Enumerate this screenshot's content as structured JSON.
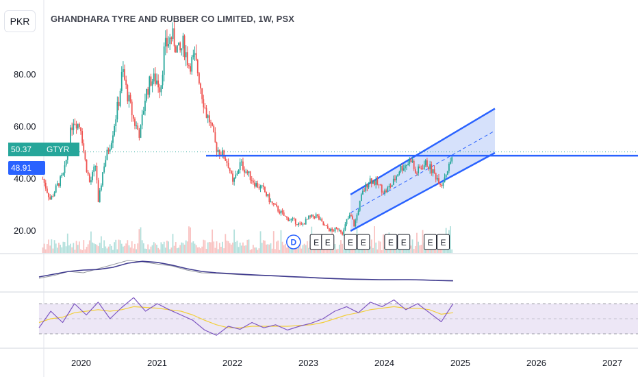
{
  "header": {
    "currency": "PKR",
    "title": "GHANDHARA TYRE AND RUBBER CO LIMITED, 1W, PSX"
  },
  "price_tags": {
    "last_price": "50.37",
    "symbol": "GTYR",
    "level_price": "48.91"
  },
  "colors": {
    "up": "#26a69a",
    "down": "#ef5350",
    "trendline": "#2962ff",
    "channel_fill": "#bbcdf8",
    "ma_fast": "#9598a1",
    "ma_slow": "#3f3a8f",
    "rsi": "#7e57c2",
    "rsi_ma": "#f2cf3b",
    "rsi_band": "#ede7f6"
  },
  "chart_data": {
    "type": "line",
    "title": "GHANDHARA TYRE AND RUBBER CO LIMITED, 1W, PSX",
    "ylabel": "PKR",
    "y_ticks": [
      "20.00",
      "40.00",
      "60.00",
      "80.00"
    ],
    "x_ticks": [
      "2020",
      "2021",
      "2022",
      "2023",
      "2024",
      "2025",
      "2026",
      "2027"
    ],
    "ylim": [
      8,
      102
    ],
    "xlim": [
      2019.45,
      2027.35
    ],
    "price_series": {
      "name": "GTYR",
      "x": [
        2019.5,
        2019.6,
        2019.7,
        2019.78,
        2019.85,
        2019.9,
        2020.0,
        2020.05,
        2020.12,
        2020.2,
        2020.23,
        2020.3,
        2020.4,
        2020.5,
        2020.55,
        2020.6,
        2020.7,
        2020.78,
        2020.85,
        2020.92,
        2021.0,
        2021.05,
        2021.1,
        2021.2,
        2021.3,
        2021.35,
        2021.42,
        2021.5,
        2021.55,
        2021.6,
        2021.65,
        2021.7,
        2021.78,
        2021.85,
        2021.9,
        2021.95,
        2022.0,
        2022.1,
        2022.2,
        2022.3,
        2022.4,
        2022.5,
        2022.6,
        2022.7,
        2022.8,
        2022.9,
        2023.0,
        2023.1,
        2023.2,
        2023.3,
        2023.4,
        2023.45,
        2023.5,
        2023.55,
        2023.6,
        2023.7,
        2023.8,
        2023.9,
        2024.0,
        2024.1,
        2024.2,
        2024.3,
        2024.35,
        2024.4,
        2024.5,
        2024.55,
        2024.6,
        2024.7,
        2024.75,
        2024.8,
        2024.85,
        2024.9
      ],
      "values": [
        40,
        32,
        38,
        42,
        55,
        63,
        60,
        48,
        38,
        46,
        30,
        45,
        55,
        70,
        82,
        74,
        62,
        57,
        72,
        78,
        78,
        75,
        90,
        95,
        88,
        92,
        84,
        86,
        80,
        72,
        65,
        62,
        52,
        50,
        48,
        45,
        38,
        46,
        42,
        38,
        36,
        31,
        28,
        25,
        24,
        22,
        25,
        26,
        22,
        20,
        21,
        19,
        24,
        26,
        22,
        34,
        40,
        38,
        35,
        38,
        44,
        46,
        48,
        42,
        45,
        46,
        44,
        40,
        38,
        42,
        45,
        50.37
      ]
    },
    "horizontal_level": 48.91,
    "channel": {
      "lower": [
        [
          2023.55,
          20
        ],
        [
          2025.45,
          50
        ]
      ],
      "upper": [
        [
          2023.55,
          34
        ],
        [
          2025.45,
          67
        ]
      ],
      "mid": [
        [
          2023.55,
          27
        ],
        [
          2025.45,
          58.5
        ]
      ]
    },
    "events": [
      {
        "x": 2022.8,
        "label": "D"
      },
      {
        "x": 2023.1,
        "label": "E"
      },
      {
        "x": 2023.25,
        "label": "E"
      },
      {
        "x": 2023.55,
        "label": "E"
      },
      {
        "x": 2023.72,
        "label": "E"
      },
      {
        "x": 2024.08,
        "label": "E"
      },
      {
        "x": 2024.25,
        "label": "E"
      },
      {
        "x": 2024.6,
        "label": "E"
      },
      {
        "x": 2024.77,
        "label": "E"
      }
    ],
    "ma_series": [
      {
        "values": [
          0.3,
          0.4,
          0.55,
          0.5,
          0.65,
          0.8,
          0.95,
          0.9,
          0.82,
          0.75,
          0.6,
          0.5,
          0.48,
          0.45,
          0.42,
          0.4,
          0.38,
          0.35,
          0.33,
          0.3,
          0.28,
          0.26,
          0.25,
          0.24,
          0.24,
          0.25,
          0.24,
          0.22,
          0.2
        ]
      },
      {
        "values": [
          0.35,
          0.45,
          0.55,
          0.6,
          0.62,
          0.7,
          0.85,
          0.92,
          0.88,
          0.78,
          0.65,
          0.55,
          0.5,
          0.47,
          0.44,
          0.41,
          0.39,
          0.36,
          0.34,
          0.31,
          0.29,
          0.27,
          0.26,
          0.25,
          0.25,
          0.25,
          0.24,
          0.22,
          0.21
        ]
      }
    ],
    "rsi": {
      "upper": 70,
      "mid": 50,
      "lower": 30,
      "values": [
        38,
        60,
        45,
        70,
        55,
        72,
        50,
        65,
        78,
        60,
        70,
        62,
        55,
        48,
        35,
        28,
        40,
        36,
        45,
        38,
        42,
        35,
        40,
        44,
        50,
        60,
        66,
        58,
        72,
        66,
        75,
        62,
        70,
        58,
        46,
        70
      ],
      "ma": [
        45,
        50,
        52,
        58,
        60,
        62,
        60,
        62,
        66,
        65,
        64,
        62,
        60,
        55,
        48,
        42,
        38,
        38,
        40,
        40,
        40,
        40,
        41,
        42,
        45,
        50,
        55,
        58,
        62,
        64,
        66,
        64,
        64,
        62,
        56,
        58
      ]
    }
  }
}
